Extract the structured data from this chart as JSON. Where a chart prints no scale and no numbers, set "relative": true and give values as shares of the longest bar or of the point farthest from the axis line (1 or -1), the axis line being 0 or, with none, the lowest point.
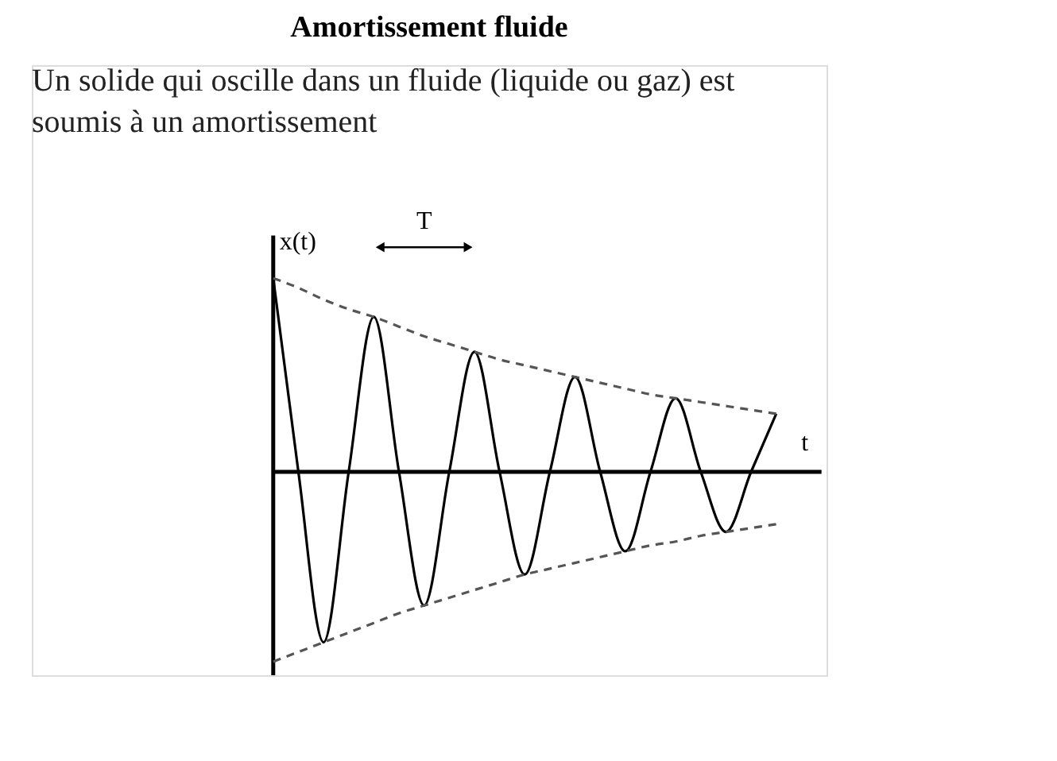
{
  "chart_data": {
    "type": "line",
    "title": "Amortissement fluide",
    "subtitle": "Un solide qui oscille dans un fluide (liquide ou gaz) est soumis à un amortissement",
    "xlabel": "t",
    "ylabel": "x(t)",
    "annotations": [
      "T"
    ],
    "relative": true,
    "categories": [
      null,
      null,
      null,
      null,
      null,
      null,
      null,
      null,
      null,
      null,
      null,
      null,
      null,
      null,
      null,
      null,
      null,
      null,
      null,
      null,
      null
    ],
    "series": [
      {
        "color": "#000000",
        "line_style": "solid",
        "values": [
          1.0,
          0,
          -0.88,
          0,
          0.8,
          0,
          -0.69,
          0,
          0.62,
          0,
          -0.53,
          0,
          0.49,
          0,
          -0.41,
          0,
          0.38,
          0,
          -0.31,
          0,
          0.3
        ]
      },
      {
        "color": "#555555",
        "line_style": "dashed",
        "values": [
          1.0,
          0.95,
          0.89,
          0.84,
          0.8,
          0.75,
          0.7,
          0.66,
          0.62,
          0.58,
          0.55,
          0.52,
          0.49,
          0.46,
          0.43,
          0.4,
          0.38,
          0.36,
          0.34,
          0.32,
          0.3
        ]
      },
      {
        "color": "#555555",
        "line_style": "dashed",
        "values": [
          -0.98,
          -0.93,
          -0.88,
          -0.83,
          -0.78,
          -0.73,
          -0.69,
          -0.65,
          -0.61,
          -0.57,
          -0.53,
          -0.5,
          -0.47,
          -0.44,
          -0.41,
          -0.38,
          -0.36,
          -0.33,
          -0.31,
          -0.29,
          -0.27
        ]
      }
    ],
    "marker": "none"
  }
}
